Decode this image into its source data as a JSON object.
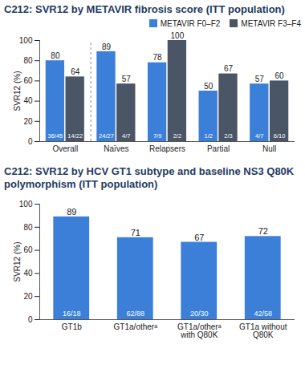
{
  "chart_data": [
    {
      "type": "bar",
      "title": "C212: SVR12 by METAVIR fibrosis score (ITT population)",
      "ylabel": "SVR12 (%)",
      "categories": [
        "Overall",
        "Naïves",
        "Relapsers",
        "Partial",
        "Null"
      ],
      "series": [
        {
          "name": "METAVIR F0–F2",
          "color": "#3c7fd8",
          "values": [
            80,
            89,
            78,
            50,
            57
          ],
          "fractions": [
            "36/45",
            "24/27",
            "7/9",
            "1/2",
            "4/7"
          ]
        },
        {
          "name": "METAVIR F3–F4",
          "color": "#4a5565",
          "values": [
            64,
            57,
            100,
            67,
            60
          ],
          "fractions": [
            "14/22",
            "4/7",
            "2/2",
            "2/3",
            "6/10"
          ]
        }
      ],
      "ylim": [
        0,
        100
      ],
      "yticks": [
        0,
        20,
        40,
        60,
        80,
        100
      ],
      "grid": false,
      "legend": "top-right",
      "data_labels": true
    },
    {
      "type": "bar",
      "title": "C212: SVR12 by HCV GT1 subtype and baseline NS3 Q80K polymorphism (ITT population)",
      "ylabel": "SVR12 (%)",
      "categories": [
        "GT1b",
        "GT1a/otherᵃ",
        "GT1a/otherᵃ with Q80K",
        "GT1a without Q80K"
      ],
      "values": [
        89,
        71,
        67,
        72
      ],
      "fractions": [
        "16/18",
        "62/88",
        "20/30",
        "42/58"
      ],
      "color": "#3c7fd8",
      "ylim": [
        0,
        100
      ],
      "yticks": [
        0,
        20,
        40,
        60,
        80,
        100
      ],
      "grid": false,
      "data_labels": true
    }
  ]
}
